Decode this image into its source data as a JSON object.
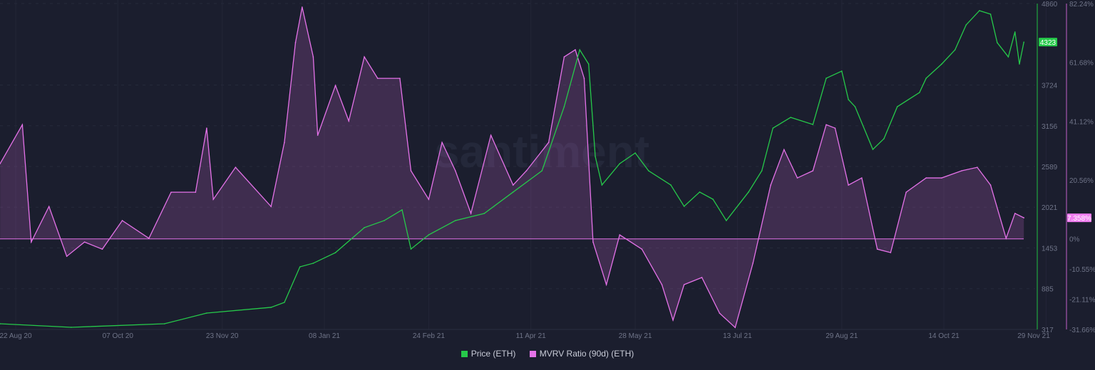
{
  "chart_data": {
    "type": "line",
    "watermark": "santiment",
    "x_unit": "days since 22 Aug 20",
    "xlim": [
      -7,
      460
    ],
    "x_ticks": [
      {
        "day": 0,
        "label": "22 Aug 20"
      },
      {
        "day": 46,
        "label": "07 Oct 20"
      },
      {
        "day": 93,
        "label": "23 Nov 20"
      },
      {
        "day": 139,
        "label": "08 Jan 21"
      },
      {
        "day": 186,
        "label": "24 Feb 21"
      },
      {
        "day": 232,
        "label": "11 Apr 21"
      },
      {
        "day": 279,
        "label": "28 May 21"
      },
      {
        "day": 325,
        "label": "13 Jul 21"
      },
      {
        "day": 372,
        "label": "29 Aug 21"
      },
      {
        "day": 418,
        "label": "14 Oct 21"
      },
      {
        "day": 464,
        "label": "29 Nov 21"
      }
    ],
    "price_axis": {
      "ylim": [
        317,
        4860
      ],
      "ticks": [
        "4860",
        "3724",
        "3156",
        "2589",
        "2021",
        "1453",
        "885",
        "317"
      ],
      "tick_values": [
        4860,
        3724,
        3156,
        2589,
        2021,
        1453,
        885,
        317
      ],
      "current_label": "4323"
    },
    "mvrv_axis": {
      "ylim": [
        -31.66,
        82.24
      ],
      "ticks": [
        "82.24%",
        "61.68%",
        "41.12%",
        "20.56%",
        "0%",
        "-10.55%",
        "-21.11%",
        "-31.66%"
      ],
      "tick_values": [
        82.24,
        61.68,
        41.12,
        20.56,
        0,
        -10.55,
        -21.11,
        -31.66
      ],
      "current_label": "7.358%"
    },
    "series": [
      {
        "name": "Price (ETH)",
        "color": "#26c94a",
        "axis": "price",
        "points": [
          [
            -7,
            396
          ],
          [
            25,
            347
          ],
          [
            67,
            396
          ],
          [
            86,
            545
          ],
          [
            115,
            625
          ],
          [
            121,
            694
          ],
          [
            128,
            1190
          ],
          [
            134,
            1240
          ],
          [
            144,
            1388
          ],
          [
            157,
            1736
          ],
          [
            166,
            1835
          ],
          [
            174,
            1984
          ],
          [
            178,
            1438
          ],
          [
            186,
            1636
          ],
          [
            198,
            1835
          ],
          [
            211,
            1934
          ],
          [
            224,
            2232
          ],
          [
            237,
            2529
          ],
          [
            247,
            3422
          ],
          [
            254,
            4215
          ],
          [
            258,
            4017
          ],
          [
            261,
            2728
          ],
          [
            264,
            2331
          ],
          [
            272,
            2628
          ],
          [
            279,
            2777
          ],
          [
            285,
            2529
          ],
          [
            295,
            2331
          ],
          [
            301,
            2033
          ],
          [
            308,
            2232
          ],
          [
            314,
            2132
          ],
          [
            320,
            1835
          ],
          [
            330,
            2232
          ],
          [
            336,
            2529
          ],
          [
            341,
            3124
          ],
          [
            349,
            3273
          ],
          [
            359,
            3174
          ],
          [
            365,
            3819
          ],
          [
            372,
            3918
          ],
          [
            375,
            3521
          ],
          [
            378,
            3422
          ],
          [
            386,
            2827
          ],
          [
            391,
            2976
          ],
          [
            397,
            3422
          ],
          [
            407,
            3620
          ],
          [
            410,
            3819
          ],
          [
            417,
            4017
          ],
          [
            423,
            4215
          ],
          [
            428,
            4563
          ],
          [
            434,
            4761
          ],
          [
            439,
            4712
          ],
          [
            442,
            4315
          ],
          [
            447,
            4117
          ],
          [
            450,
            4464
          ],
          [
            452,
            4017
          ],
          [
            454,
            4323
          ]
        ]
      },
      {
        "name": "MVRV Ratio (90d) (ETH)",
        "color": "#e472e8",
        "axis": "mvrv",
        "points": [
          [
            -7,
            26.3
          ],
          [
            3,
            39.9
          ],
          [
            7,
            -1.1
          ],
          [
            15,
            11.3
          ],
          [
            23,
            -6.1
          ],
          [
            31,
            -1.1
          ],
          [
            39,
            -3.6
          ],
          [
            48,
            6.4
          ],
          [
            60,
            0.2
          ],
          [
            70,
            16.3
          ],
          [
            81,
            16.3
          ],
          [
            86,
            38.7
          ],
          [
            89,
            13.8
          ],
          [
            99,
            25.0
          ],
          [
            115,
            11.3
          ],
          [
            121,
            33.7
          ],
          [
            126,
            68.6
          ],
          [
            129,
            81.0
          ],
          [
            134,
            63.6
          ],
          [
            136,
            36.2
          ],
          [
            144,
            53.6
          ],
          [
            150,
            41.2
          ],
          [
            157,
            63.6
          ],
          [
            163,
            56.1
          ],
          [
            173,
            56.1
          ],
          [
            178,
            23.8
          ],
          [
            186,
            13.8
          ],
          [
            192,
            33.7
          ],
          [
            198,
            23.8
          ],
          [
            205,
            8.9
          ],
          [
            214,
            36.2
          ],
          [
            224,
            18.8
          ],
          [
            230,
            23.8
          ],
          [
            240,
            33.7
          ],
          [
            247,
            63.6
          ],
          [
            252,
            66.1
          ],
          [
            256,
            56.1
          ],
          [
            260,
            -1.1
          ],
          [
            266,
            -16.0
          ],
          [
            272,
            1.4
          ],
          [
            282,
            -3.6
          ],
          [
            291,
            -16.0
          ],
          [
            296,
            -28.4
          ],
          [
            301,
            -16.0
          ],
          [
            309,
            -13.5
          ],
          [
            317,
            -26.0
          ],
          [
            324,
            -31.0
          ],
          [
            332,
            -8.5
          ],
          [
            340,
            18.8
          ],
          [
            346,
            31.2
          ],
          [
            352,
            21.3
          ],
          [
            359,
            23.8
          ],
          [
            365,
            39.9
          ],
          [
            369,
            38.7
          ],
          [
            375,
            18.8
          ],
          [
            381,
            21.3
          ],
          [
            388,
            -3.6
          ],
          [
            394,
            -4.8
          ],
          [
            401,
            16.3
          ],
          [
            410,
            21.3
          ],
          [
            417,
            21.3
          ],
          [
            426,
            23.8
          ],
          [
            433,
            25.0
          ],
          [
            439,
            18.8
          ],
          [
            446,
            0.2
          ],
          [
            450,
            8.9
          ],
          [
            454,
            7.358
          ]
        ]
      }
    ],
    "legend": [
      "Price (ETH)",
      "MVRV Ratio (90d) (ETH)"
    ],
    "legend_placement": "bottom-center",
    "grid": true
  }
}
